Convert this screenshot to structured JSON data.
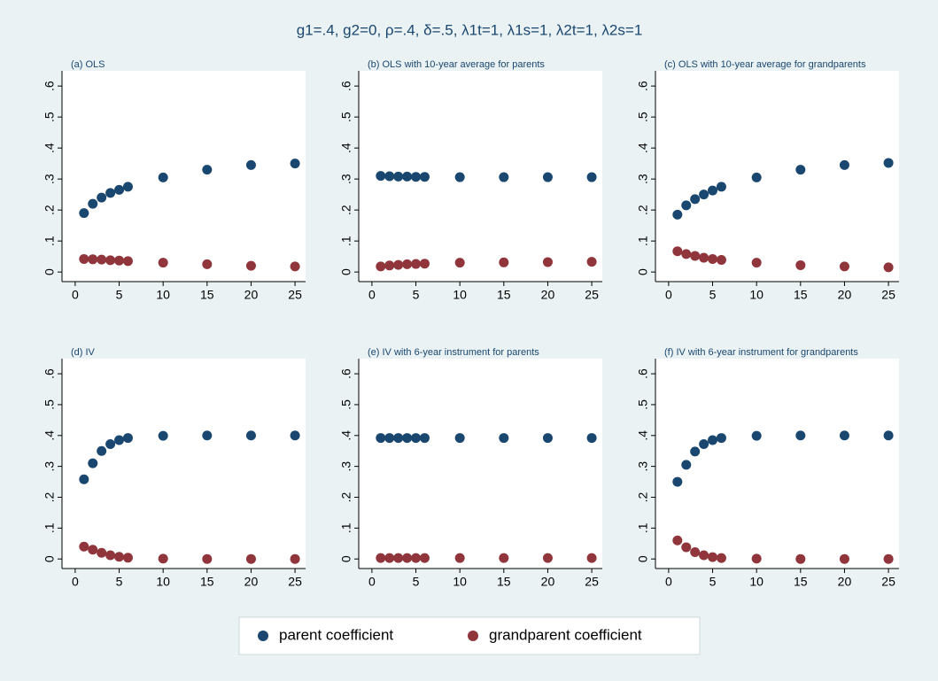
{
  "title": "g1=.4, g2=0, ρ=.4, δ=.5, λ1t=1, λ1s=1, λ2t=1, λ2s=1",
  "legend": "bottom",
  "chart_data": [
    {
      "type": "scatter",
      "title": "(a) OLS",
      "x": [
        1,
        2,
        3,
        4,
        5,
        6,
        10,
        15,
        20,
        25
      ],
      "series": [
        {
          "name": "parent coefficient",
          "color": "#1a476f",
          "values": [
            0.19,
            0.22,
            0.24,
            0.255,
            0.265,
            0.275,
            0.305,
            0.33,
            0.345,
            0.35
          ]
        },
        {
          "name": "grandparent coefficient",
          "color": "#90353b",
          "values": [
            0.042,
            0.041,
            0.04,
            0.038,
            0.037,
            0.035,
            0.03,
            0.025,
            0.02,
            0.018
          ]
        }
      ],
      "xlim": [
        -1.5,
        26.2
      ],
      "xticks": [
        0,
        5,
        10,
        15,
        20,
        25
      ],
      "ylim": [
        -0.031,
        0.649
      ],
      "yticks": [
        0,
        {
          "value": 0.1,
          "label": ".1"
        },
        {
          "value": 0.2,
          "label": ".2"
        },
        {
          "value": 0.3,
          "label": ".3"
        },
        {
          "value": 0.4,
          "label": ".4"
        },
        {
          "value": 0.5,
          "label": ".5"
        },
        {
          "value": 0.6,
          "label": ".6"
        }
      ],
      "grid": false
    },
    {
      "type": "scatter",
      "title": "(b) OLS with 10-year average for parents",
      "x": [
        1,
        2,
        3,
        4,
        5,
        6,
        10,
        15,
        20,
        25
      ],
      "series": [
        {
          "name": "parent coefficient",
          "color": "#1a476f",
          "values": [
            0.31,
            0.309,
            0.308,
            0.308,
            0.307,
            0.307,
            0.306,
            0.306,
            0.306,
            0.306
          ]
        },
        {
          "name": "grandparent coefficient",
          "color": "#90353b",
          "values": [
            0.018,
            0.021,
            0.023,
            0.025,
            0.026,
            0.027,
            0.03,
            0.031,
            0.032,
            0.033
          ]
        }
      ],
      "xlim": [
        -1.5,
        26.2
      ],
      "xticks": [
        0,
        5,
        10,
        15,
        20,
        25
      ],
      "ylim": [
        -0.031,
        0.649
      ],
      "yticks": [
        0,
        {
          "value": 0.1,
          "label": ".1"
        },
        {
          "value": 0.2,
          "label": ".2"
        },
        {
          "value": 0.3,
          "label": ".3"
        },
        {
          "value": 0.4,
          "label": ".4"
        },
        {
          "value": 0.5,
          "label": ".5"
        },
        {
          "value": 0.6,
          "label": ".6"
        }
      ],
      "grid": false
    },
    {
      "type": "scatter",
      "title": "(c) OLS with 10-year average for grandparents",
      "x": [
        1,
        2,
        3,
        4,
        5,
        6,
        10,
        15,
        20,
        25
      ],
      "series": [
        {
          "name": "parent coefficient",
          "color": "#1a476f",
          "values": [
            0.185,
            0.215,
            0.235,
            0.25,
            0.263,
            0.275,
            0.305,
            0.33,
            0.345,
            0.352
          ]
        },
        {
          "name": "grandparent coefficient",
          "color": "#90353b",
          "values": [
            0.067,
            0.058,
            0.052,
            0.046,
            0.042,
            0.039,
            0.03,
            0.022,
            0.018,
            0.015
          ]
        }
      ],
      "xlim": [
        -1.5,
        26.2
      ],
      "xticks": [
        0,
        5,
        10,
        15,
        20,
        25
      ],
      "ylim": [
        -0.031,
        0.649
      ],
      "yticks": [
        0,
        {
          "value": 0.1,
          "label": ".1"
        },
        {
          "value": 0.2,
          "label": ".2"
        },
        {
          "value": 0.3,
          "label": ".3"
        },
        {
          "value": 0.4,
          "label": ".4"
        },
        {
          "value": 0.5,
          "label": ".5"
        },
        {
          "value": 0.6,
          "label": ".6"
        }
      ],
      "grid": false
    },
    {
      "type": "scatter",
      "title": "(d) IV",
      "x": [
        1,
        2,
        3,
        4,
        5,
        6,
        10,
        15,
        20,
        25
      ],
      "series": [
        {
          "name": "parent coefficient",
          "color": "#1a476f",
          "values": [
            0.258,
            0.31,
            0.35,
            0.372,
            0.385,
            0.392,
            0.399,
            0.4,
            0.4,
            0.4
          ]
        },
        {
          "name": "grandparent coefficient",
          "color": "#90353b",
          "values": [
            0.04,
            0.03,
            0.02,
            0.012,
            0.007,
            0.004,
            0.001,
            0,
            0,
            0
          ]
        }
      ],
      "xlim": [
        -1.5,
        26.2
      ],
      "xticks": [
        0,
        5,
        10,
        15,
        20,
        25
      ],
      "ylim": [
        -0.031,
        0.649
      ],
      "yticks": [
        0,
        {
          "value": 0.1,
          "label": ".1"
        },
        {
          "value": 0.2,
          "label": ".2"
        },
        {
          "value": 0.3,
          "label": ".3"
        },
        {
          "value": 0.4,
          "label": ".4"
        },
        {
          "value": 0.5,
          "label": ".5"
        },
        {
          "value": 0.6,
          "label": ".6"
        }
      ],
      "grid": false
    },
    {
      "type": "scatter",
      "title": "(e) IV with 6-year instrument for parents",
      "x": [
        1,
        2,
        3,
        4,
        5,
        6,
        10,
        15,
        20,
        25
      ],
      "series": [
        {
          "name": "parent coefficient",
          "color": "#1a476f",
          "values": [
            0.392,
            0.392,
            0.392,
            0.392,
            0.392,
            0.392,
            0.392,
            0.392,
            0.392,
            0.392
          ]
        },
        {
          "name": "grandparent coefficient",
          "color": "#90353b",
          "values": [
            0.003,
            0.003,
            0.003,
            0.003,
            0.003,
            0.003,
            0.003,
            0.003,
            0.003,
            0.003
          ]
        }
      ],
      "xlim": [
        -1.5,
        26.2
      ],
      "xticks": [
        0,
        5,
        10,
        15,
        20,
        25
      ],
      "ylim": [
        -0.031,
        0.649
      ],
      "yticks": [
        0,
        {
          "value": 0.1,
          "label": ".1"
        },
        {
          "value": 0.2,
          "label": ".2"
        },
        {
          "value": 0.3,
          "label": ".3"
        },
        {
          "value": 0.4,
          "label": ".4"
        },
        {
          "value": 0.5,
          "label": ".5"
        },
        {
          "value": 0.6,
          "label": ".6"
        }
      ],
      "grid": false
    },
    {
      "type": "scatter",
      "title": "(f) IV with 6-year instrument for grandparents",
      "x": [
        1,
        2,
        3,
        4,
        5,
        6,
        10,
        15,
        20,
        25
      ],
      "series": [
        {
          "name": "parent coefficient",
          "color": "#1a476f",
          "values": [
            0.25,
            0.305,
            0.348,
            0.372,
            0.385,
            0.392,
            0.399,
            0.4,
            0.4,
            0.4
          ]
        },
        {
          "name": "grandparent coefficient",
          "color": "#90353b",
          "values": [
            0.06,
            0.038,
            0.022,
            0.012,
            0.006,
            0.003,
            0.001,
            0,
            0,
            0
          ]
        }
      ],
      "xlim": [
        -1.5,
        26.2
      ],
      "xticks": [
        0,
        5,
        10,
        15,
        20,
        25
      ],
      "ylim": [
        -0.031,
        0.649
      ],
      "yticks": [
        0,
        {
          "value": 0.1,
          "label": ".1"
        },
        {
          "value": 0.2,
          "label": ".2"
        },
        {
          "value": 0.3,
          "label": ".3"
        },
        {
          "value": 0.4,
          "label": ".4"
        },
        {
          "value": 0.5,
          "label": ".5"
        },
        {
          "value": 0.6,
          "label": ".6"
        }
      ],
      "grid": false
    }
  ]
}
